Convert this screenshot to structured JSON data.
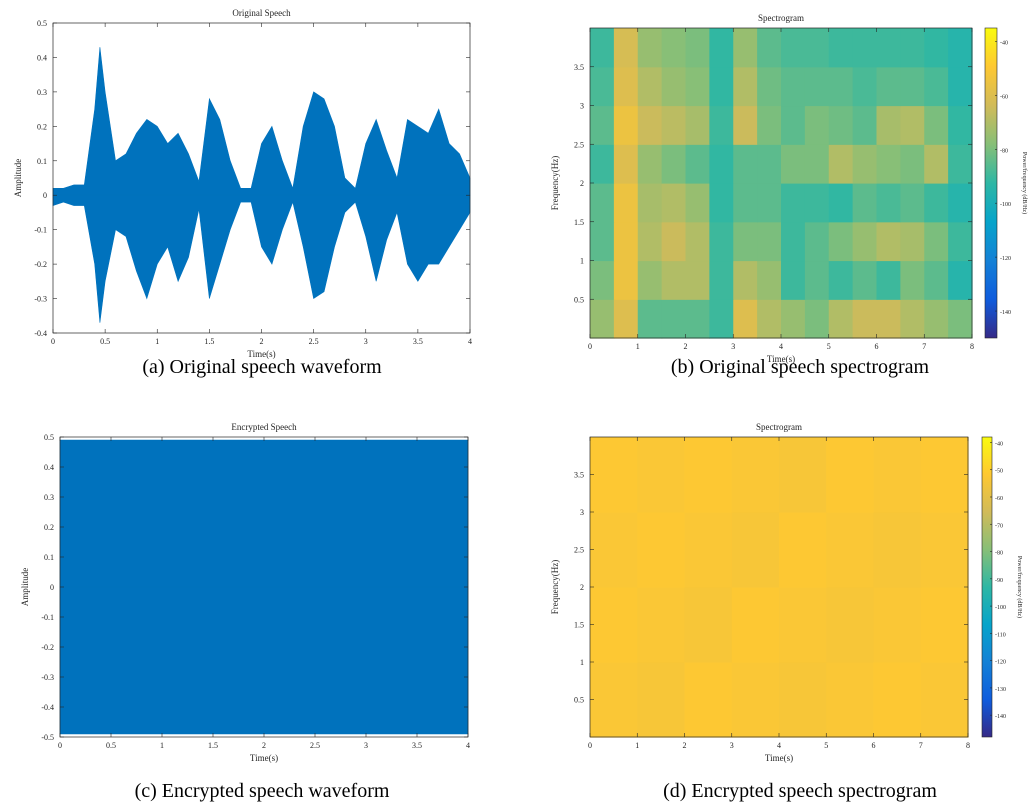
{
  "chart_data": [
    {
      "type": "envelope",
      "title": "Original Speech",
      "caption": "(a) Original speech waveform",
      "xlabel": "Time(s)",
      "ylabel": "Amplitude",
      "color": "#0072bd",
      "xlim": [
        0,
        4
      ],
      "xticks": [
        0,
        0.5,
        1,
        1.5,
        2,
        2.5,
        3,
        3.5,
        4
      ],
      "ylim": [
        -0.4,
        0.5
      ],
      "yticks": [
        -0.4,
        -0.3,
        -0.2,
        -0.1,
        0,
        0.1,
        0.2,
        0.3,
        0.4,
        0.5
      ],
      "x": [
        0,
        0.1,
        0.2,
        0.3,
        0.4,
        0.45,
        0.5,
        0.6,
        0.7,
        0.8,
        0.9,
        1,
        1.1,
        1.2,
        1.3,
        1.4,
        1.5,
        1.6,
        1.7,
        1.8,
        1.9,
        2,
        2.1,
        2.2,
        2.3,
        2.4,
        2.5,
        2.6,
        2.7,
        2.8,
        2.9,
        3,
        3.1,
        3.2,
        3.3,
        3.4,
        3.5,
        3.6,
        3.7,
        3.8,
        3.9,
        4
      ],
      "upper": [
        0.02,
        0.02,
        0.03,
        0.03,
        0.25,
        0.43,
        0.3,
        0.1,
        0.12,
        0.18,
        0.22,
        0.2,
        0.15,
        0.18,
        0.12,
        0.04,
        0.28,
        0.22,
        0.1,
        0.02,
        0.02,
        0.15,
        0.2,
        0.1,
        0.02,
        0.2,
        0.3,
        0.28,
        0.2,
        0.05,
        0.02,
        0.15,
        0.22,
        0.13,
        0.05,
        0.22,
        0.2,
        0.18,
        0.25,
        0.15,
        0.12,
        0.05
      ],
      "lower": [
        -0.03,
        -0.02,
        -0.03,
        -0.03,
        -0.2,
        -0.37,
        -0.25,
        -0.1,
        -0.12,
        -0.22,
        -0.3,
        -0.2,
        -0.15,
        -0.25,
        -0.18,
        -0.04,
        -0.3,
        -0.2,
        -0.1,
        -0.02,
        -0.02,
        -0.15,
        -0.2,
        -0.1,
        -0.02,
        -0.15,
        -0.3,
        -0.28,
        -0.15,
        -0.05,
        -0.02,
        -0.12,
        -0.25,
        -0.13,
        -0.05,
        -0.2,
        -0.25,
        -0.2,
        -0.2,
        -0.15,
        -0.1,
        -0.05
      ]
    },
    {
      "type": "spectrogram",
      "title": "Spectrogram",
      "caption": "(b) Original speech spectrogram",
      "xlabel": "Time(s)",
      "ylabel": "Frequency(Hz)",
      "colorbar_label": "Power/frequency (dB/Hz)",
      "xlim": [
        0,
        8
      ],
      "xticks": [
        0,
        1,
        2,
        3,
        4,
        5,
        6,
        7,
        8
      ],
      "ylim": [
        0,
        4
      ],
      "yticks": [
        0.5,
        1,
        1.5,
        2,
        2.5,
        3,
        3.5
      ],
      "clim": [
        -150,
        -35
      ],
      "cticks": [
        -140,
        -120,
        -100,
        -80,
        -60,
        -40
      ],
      "colormap": [
        "#352a87",
        "#0f5cdd",
        "#1481d6",
        "#06a4ca",
        "#2eb7a4",
        "#87bf77",
        "#d1bb59",
        "#fec832",
        "#f9fb0e"
      ],
      "z": [
        [
          -75,
          -60,
          -85,
          -85,
          -85,
          -90,
          -60,
          -70,
          -75,
          -80,
          -70,
          -65,
          -65,
          -70,
          -75,
          -80
        ],
        [
          -80,
          -55,
          -75,
          -70,
          -70,
          -90,
          -70,
          -75,
          -90,
          -85,
          -90,
          -85,
          -90,
          -80,
          -85,
          -95
        ],
        [
          -85,
          -55,
          -70,
          -65,
          -70,
          -90,
          -80,
          -80,
          -90,
          -85,
          -80,
          -75,
          -70,
          -72,
          -80,
          -90
        ],
        [
          -85,
          -55,
          -72,
          -70,
          -75,
          -92,
          -85,
          -85,
          -90,
          -90,
          -92,
          -85,
          -88,
          -85,
          -90,
          -95
        ],
        [
          -90,
          -60,
          -75,
          -80,
          -85,
          -92,
          -85,
          -85,
          -80,
          -80,
          -70,
          -75,
          -78,
          -80,
          -70,
          -90
        ],
        [
          -85,
          -55,
          -65,
          -68,
          -72,
          -90,
          -65,
          -80,
          -85,
          -80,
          -82,
          -85,
          -72,
          -70,
          -80,
          -92
        ],
        [
          -88,
          -60,
          -70,
          -75,
          -78,
          -92,
          -70,
          -82,
          -85,
          -85,
          -85,
          -88,
          -85,
          -85,
          -88,
          -95
        ],
        [
          -90,
          -62,
          -75,
          -78,
          -80,
          -92,
          -75,
          -85,
          -88,
          -88,
          -90,
          -90,
          -90,
          -90,
          -92,
          -95
        ]
      ]
    },
    {
      "type": "envelope",
      "title": "Encrypted Speech",
      "caption": "(c) Encrypted speech waveform",
      "xlabel": "Time(s)",
      "ylabel": "Amplitude",
      "color": "#0072bd",
      "xlim": [
        0,
        4
      ],
      "xticks": [
        0,
        0.5,
        1,
        1.5,
        2,
        2.5,
        3,
        3.5,
        4
      ],
      "ylim": [
        -0.5,
        0.5
      ],
      "yticks": [
        -0.5,
        -0.4,
        -0.3,
        -0.2,
        -0.1,
        0,
        0.1,
        0.2,
        0.3,
        0.4,
        0.5
      ],
      "x": [
        0,
        4
      ],
      "upper": [
        0.49,
        0.49
      ],
      "lower": [
        -0.49,
        -0.49
      ]
    },
    {
      "type": "spectrogram",
      "title": "Spectrogram",
      "caption": "(d) Encrypted speech spectrogram",
      "xlabel": "Time(s)",
      "ylabel": "Frequency(Hz)",
      "colorbar_label": "Power/frequency (dB/Hz)",
      "xlim": [
        0,
        8
      ],
      "xticks": [
        0,
        1,
        2,
        3,
        4,
        5,
        6,
        7,
        8
      ],
      "ylim": [
        0,
        4
      ],
      "yticks": [
        0.5,
        1,
        1.5,
        2,
        2.5,
        3,
        3.5
      ],
      "clim": [
        -148,
        -38
      ],
      "cticks": [
        -140,
        -130,
        -120,
        -110,
        -100,
        -90,
        -80,
        -70,
        -60,
        -50,
        -40
      ],
      "colormap": [
        "#352a87",
        "#0f5cdd",
        "#1481d6",
        "#06a4ca",
        "#2eb7a4",
        "#87bf77",
        "#d1bb59",
        "#fec832",
        "#f9fb0e"
      ],
      "z": [
        [
          -53,
          -54,
          -52,
          -53,
          -54,
          -53,
          -52,
          -53
        ],
        [
          -52,
          -53,
          -54,
          -52,
          -53,
          -54,
          -53,
          -52
        ],
        [
          -53,
          -52,
          -53,
          -54,
          -52,
          -53,
          -54,
          -53
        ],
        [
          -52,
          -53,
          -52,
          -53,
          -54,
          -52,
          -53,
          -52
        ]
      ]
    }
  ]
}
